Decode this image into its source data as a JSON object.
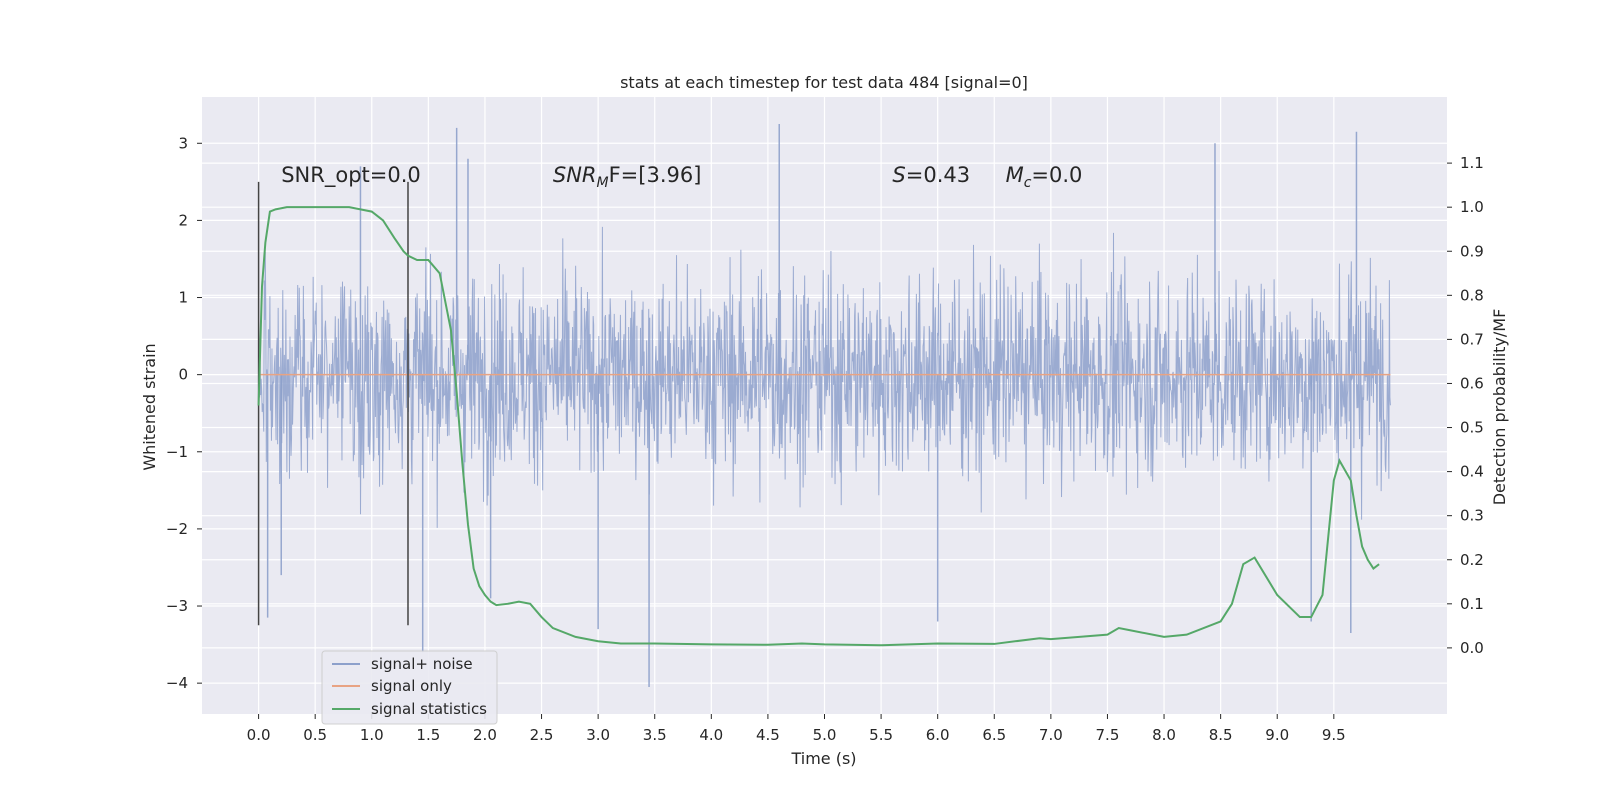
{
  "chart_data": {
    "type": "line",
    "title": "stats at each timestep for test data 484 [signal=0]",
    "xlabel": "Time (s)",
    "ylabel_left": "Whitened strain",
    "ylabel_right": "Detection probability/MF",
    "xlim": [
      -0.5,
      10.5
    ],
    "ylim_left": [
      -4.4,
      3.6
    ],
    "ylim_right": [
      -0.15,
      1.25
    ],
    "xticks": [
      0.0,
      0.5,
      1.0,
      1.5,
      2.0,
      2.5,
      3.0,
      3.5,
      4.0,
      4.5,
      5.0,
      5.5,
      6.0,
      6.5,
      7.0,
      7.5,
      8.0,
      8.5,
      9.0,
      9.5
    ],
    "xtick_labels": [
      "0.0",
      "0.5",
      "1.0",
      "1.5",
      "2.0",
      "2.5",
      "3.0",
      "3.5",
      "4.0",
      "4.5",
      "5.0",
      "5.5",
      "6.0",
      "6.5",
      "7.0",
      "7.5",
      "8.0",
      "8.5",
      "9.0",
      "9.5"
    ],
    "yticks_left": [
      -4,
      -3,
      -2,
      -1,
      0,
      1,
      2,
      3
    ],
    "ytick_labels_left": [
      "−4",
      "−3",
      "−2",
      "−1",
      "0",
      "1",
      "2",
      "3"
    ],
    "yticks_right": [
      0.0,
      0.1,
      0.2,
      0.3,
      0.4,
      0.5,
      0.6,
      0.7,
      0.8,
      0.9,
      1.0,
      1.1
    ],
    "ytick_labels_right": [
      "0.0",
      "0.1",
      "0.2",
      "0.3",
      "0.4",
      "0.5",
      "0.6",
      "0.7",
      "0.8",
      "0.9",
      "1.0",
      "1.1"
    ],
    "grid": true,
    "legend_position": "lower-left",
    "series": [
      {
        "name": "signal+ noise",
        "axis": "left",
        "color": "#8da0cb",
        "x_range": [
          0.0,
          10.0
        ],
        "typical_band": [
          -1.35,
          1.35
        ],
        "extremes": [
          {
            "x": 0.08,
            "y": -3.15
          },
          {
            "x": 0.2,
            "y": -2.6
          },
          {
            "x": 0.9,
            "y": 2.7
          },
          {
            "x": 1.45,
            "y": -3.6
          },
          {
            "x": 1.75,
            "y": 3.2
          },
          {
            "x": 1.85,
            "y": 2.8
          },
          {
            "x": 2.05,
            "y": -2.9
          },
          {
            "x": 3.0,
            "y": -3.3
          },
          {
            "x": 3.45,
            "y": -4.05
          },
          {
            "x": 4.6,
            "y": 3.25
          },
          {
            "x": 6.0,
            "y": -3.2
          },
          {
            "x": 8.45,
            "y": 3.0
          },
          {
            "x": 9.3,
            "y": -3.2
          },
          {
            "x": 9.65,
            "y": -3.35
          },
          {
            "x": 9.7,
            "y": 3.15
          }
        ]
      },
      {
        "name": "signal only",
        "axis": "left",
        "color": "#e8a383",
        "x": [
          0.0,
          10.0
        ],
        "y": [
          0.0,
          0.0
        ]
      },
      {
        "name": "signal statistics",
        "axis": "right",
        "color": "#55a868",
        "x": [
          0.0,
          0.03,
          0.06,
          0.1,
          0.15,
          0.25,
          0.4,
          0.6,
          0.8,
          1.0,
          1.1,
          1.2,
          1.28,
          1.32,
          1.4,
          1.5,
          1.6,
          1.7,
          1.75,
          1.8,
          1.85,
          1.9,
          1.95,
          2.0,
          2.05,
          2.1,
          2.2,
          2.3,
          2.4,
          2.5,
          2.6,
          2.8,
          3.0,
          3.2,
          3.5,
          4.0,
          4.5,
          4.8,
          5.0,
          5.5,
          6.0,
          6.5,
          6.9,
          7.0,
          7.5,
          7.6,
          7.7,
          8.0,
          8.2,
          8.5,
          8.6,
          8.7,
          8.8,
          9.0,
          9.2,
          9.3,
          9.4,
          9.5,
          9.55,
          9.65,
          9.7,
          9.75,
          9.8,
          9.85,
          9.9
        ],
        "y": [
          0.55,
          0.82,
          0.92,
          0.99,
          0.995,
          1.0,
          1.0,
          1.0,
          1.0,
          0.99,
          0.97,
          0.93,
          0.9,
          0.89,
          0.88,
          0.88,
          0.85,
          0.72,
          0.58,
          0.42,
          0.28,
          0.18,
          0.14,
          0.12,
          0.105,
          0.097,
          0.1,
          0.105,
          0.1,
          0.07,
          0.045,
          0.025,
          0.015,
          0.01,
          0.01,
          0.008,
          0.007,
          0.01,
          0.008,
          0.006,
          0.01,
          0.009,
          0.022,
          0.02,
          0.03,
          0.045,
          0.04,
          0.025,
          0.03,
          0.06,
          0.1,
          0.19,
          0.205,
          0.12,
          0.07,
          0.07,
          0.12,
          0.38,
          0.425,
          0.38,
          0.3,
          0.23,
          0.2,
          0.18,
          0.19
        ]
      }
    ],
    "vertical_lines": [
      {
        "x": 0.0,
        "y_range": [
          -3.25,
          2.5
        ],
        "color": "#444444"
      },
      {
        "x": 1.32,
        "y_range": [
          -3.25,
          2.5
        ],
        "color": "#444444"
      }
    ],
    "annotations": [
      {
        "text": "SNR_opt=0.0",
        "x": 0.2,
        "y": 2.5
      },
      {
        "prefix": "SNR",
        "sub": "M",
        "suffix": "F=[3.96]",
        "x": 2.6,
        "y": 2.5
      },
      {
        "prefix": "S",
        "sub": "",
        "suffix": "=0.43",
        "x": 5.6,
        "y": 2.5
      },
      {
        "prefix": "M",
        "sub": "c",
        "suffix": "=0.0",
        "x": 6.6,
        "y": 2.5
      }
    ],
    "colors": {
      "plot_background": "#eaeaf2",
      "grid": "#ffffff",
      "text": "#262626"
    }
  }
}
